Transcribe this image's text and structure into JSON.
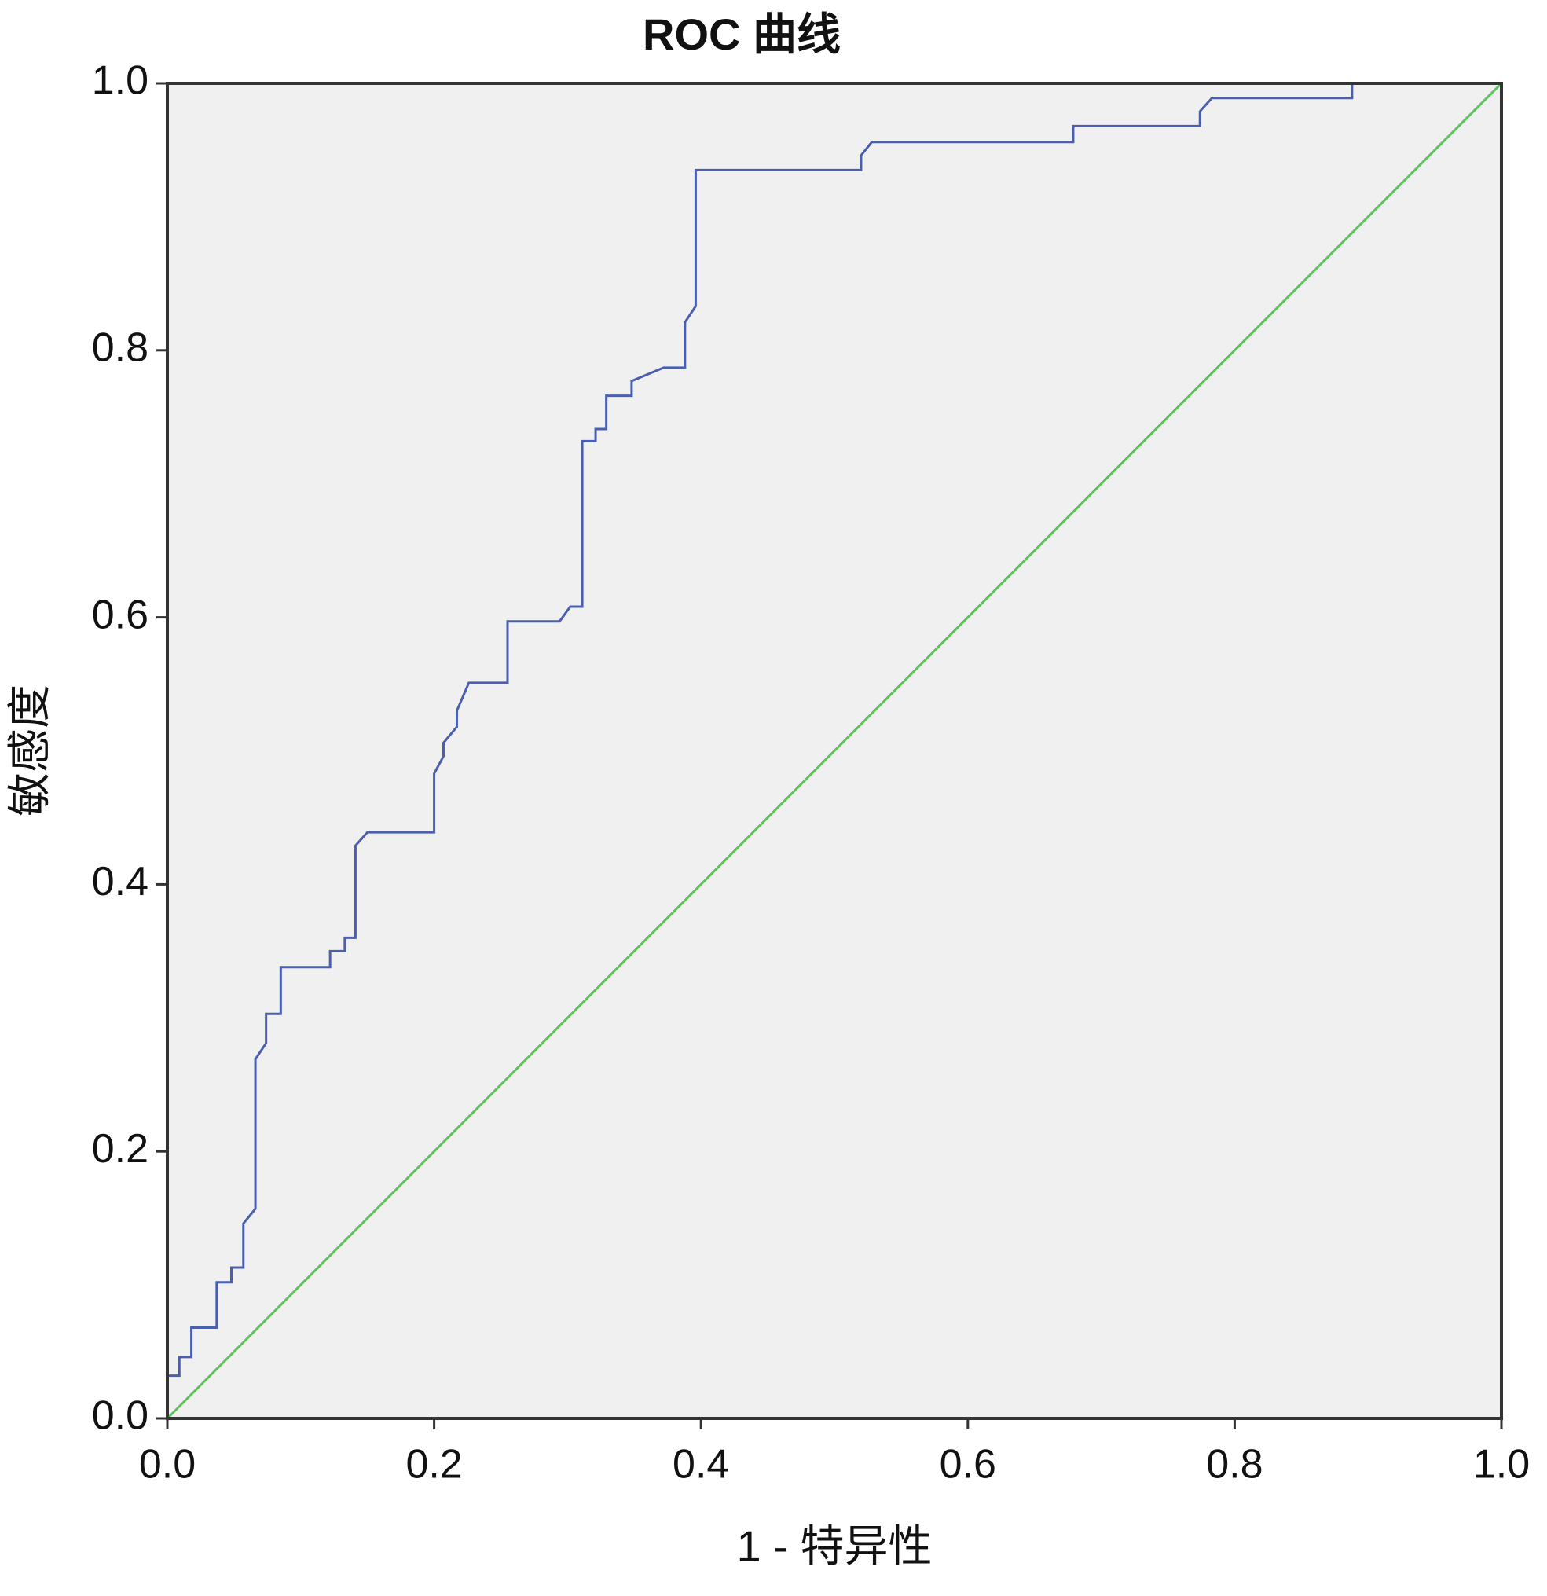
{
  "chart_data": {
    "type": "line",
    "title": "ROC 曲线",
    "x_label": "1 - 特异性",
    "y_label": "敏感度",
    "xlim": [
      0,
      1
    ],
    "ylim": [
      0,
      1
    ],
    "xticks": [
      {
        "value": 0,
        "label": "0.0"
      },
      0.2,
      0.4,
      0.6,
      0.8,
      {
        "value": 1,
        "label": "1.0"
      }
    ],
    "yticks": [
      {
        "value": 0,
        "label": "0.0"
      },
      0.2,
      0.4,
      0.6,
      0.8,
      {
        "value": 1,
        "label": "1.0"
      }
    ],
    "grid": false,
    "series": [
      {
        "color": "#4a5fb0",
        "x": [
          0,
          0,
          0.009,
          0.009,
          0.018,
          0.018,
          0.037,
          0.037,
          0.048,
          0.048,
          0.057,
          0.057,
          0.066,
          0.066,
          0.074,
          0.074,
          0.085,
          0.085,
          0.122,
          0.122,
          0.133,
          0.133,
          0.141,
          0.141,
          0.15,
          0.2,
          0.2,
          0.207,
          0.207,
          0.217,
          0.217,
          0.226,
          0.255,
          0.255,
          0.294,
          0.302,
          0.311,
          0.311,
          0.321,
          0.321,
          0.329,
          0.329,
          0.348,
          0.348,
          0.372,
          0.388,
          0.388,
          0.396,
          0.396,
          0.52,
          0.52,
          0.528,
          0.679,
          0.679,
          0.774,
          0.774,
          0.783,
          0.888,
          0.888,
          1
        ],
        "values": [
          0,
          0.032,
          0.032,
          0.046,
          0.046,
          0.068,
          0.068,
          0.102,
          0.102,
          0.113,
          0.113,
          0.146,
          0.157,
          0.269,
          0.281,
          0.303,
          0.303,
          0.338,
          0.338,
          0.35,
          0.35,
          0.36,
          0.36,
          0.429,
          0.439,
          0.439,
          0.483,
          0.496,
          0.506,
          0.518,
          0.53,
          0.551,
          0.551,
          0.597,
          0.597,
          0.608,
          0.608,
          0.732,
          0.732,
          0.741,
          0.741,
          0.766,
          0.766,
          0.777,
          0.787,
          0.787,
          0.821,
          0.833,
          0.935,
          0.935,
          0.946,
          0.956,
          0.956,
          0.968,
          0.968,
          0.979,
          0.989,
          0.989,
          1,
          1
        ]
      },
      {
        "color": "#5dc25d",
        "x": [
          0,
          1
        ],
        "values": [
          0,
          1
        ]
      }
    ]
  }
}
